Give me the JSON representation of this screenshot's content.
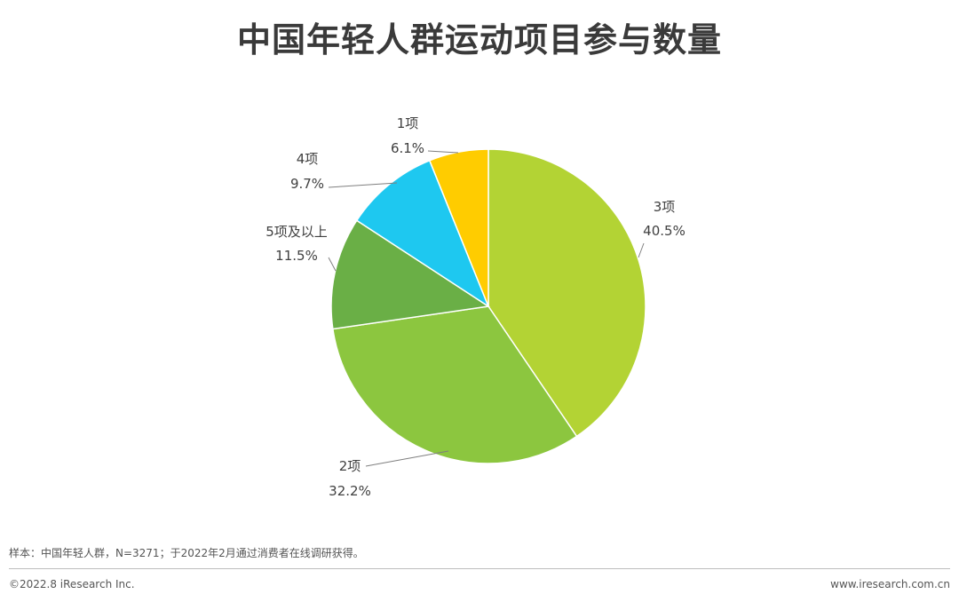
{
  "chart_data": {
    "type": "pie",
    "title": "中国年轻人群运动项目参与数量",
    "slices": [
      {
        "label": "3项",
        "value": 40.5,
        "display": "40.5%",
        "color": "#b3d334"
      },
      {
        "label": "2项",
        "value": 32.2,
        "display": "32.2%",
        "color": "#8cc63f"
      },
      {
        "label": "5项及以上",
        "value": 11.5,
        "display": "11.5%",
        "color": "#6aaf46"
      },
      {
        "label": "4项",
        "value": 9.7,
        "display": "9.7%",
        "color": "#1ec8f0"
      },
      {
        "label": "1项",
        "value": 6.1,
        "display": "6.1%",
        "color": "#ffcc00"
      }
    ],
    "order": "clockwise from 12 o'clock"
  },
  "footer": {
    "note": "样本：中国年轻人群，N=3271；于2022年2月通过消费者在线调研获得。",
    "copyright": "©2022.8 iResearch Inc.",
    "website": "www.iresearch.com.cn"
  },
  "colors": {
    "title": "#3a3a3a",
    "leader_line": "#7f7f7f",
    "rule": "#bdbdbd"
  }
}
